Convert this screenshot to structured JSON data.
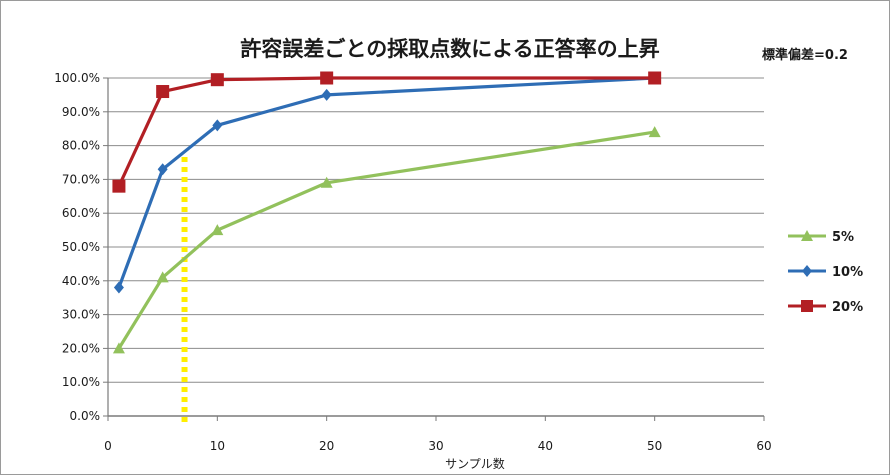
{
  "chart_data": {
    "type": "line",
    "title": "許容誤差ごとの採取点数による正答率の上昇",
    "subtitle": "標準偏差=0.2",
    "xlabel": "サンプル数",
    "ylabel": "",
    "xlim": [
      0,
      60
    ],
    "ylim": [
      0,
      100
    ],
    "x_ticks": [
      "0",
      "10",
      "20",
      "30",
      "40",
      "50",
      "60"
    ],
    "y_ticks": [
      "0.0%",
      "10.0%",
      "20.0%",
      "30.0%",
      "40.0%",
      "50.0%",
      "60.0%",
      "70.0%",
      "80.0%",
      "90.0%",
      "100.0%"
    ],
    "grid": true,
    "legend_position": "right",
    "series": [
      {
        "name": "5%",
        "color": "#92c15c",
        "marker": "triangle",
        "x": [
          1,
          5,
          10,
          20,
          50
        ],
        "values": [
          20,
          41,
          55,
          69,
          84
        ]
      },
      {
        "name": "10%",
        "color": "#2e6db5",
        "marker": "diamond",
        "x": [
          1,
          5,
          10,
          20,
          50
        ],
        "values": [
          38,
          73,
          86,
          95,
          100
        ]
      },
      {
        "name": "20%",
        "color": "#b21f24",
        "marker": "square",
        "x": [
          1,
          5,
          10,
          20,
          50
        ],
        "values": [
          68,
          96,
          99.5,
          100,
          100
        ]
      }
    ],
    "reference_line": {
      "x": 7,
      "color": "#ffee00",
      "style": "dotted"
    }
  }
}
